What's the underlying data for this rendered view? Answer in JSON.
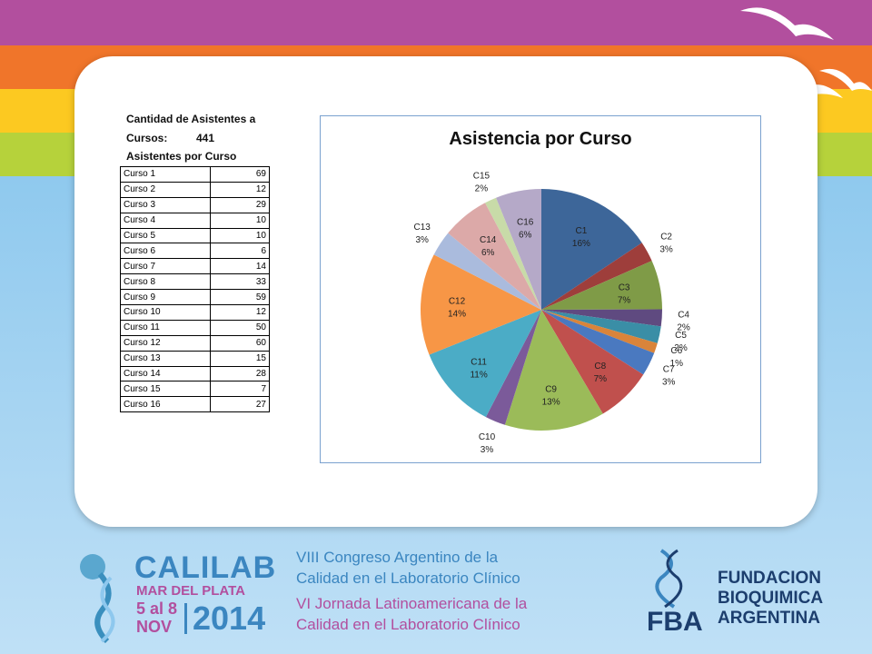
{
  "slide": {
    "heading_line1": "Cantidad de Asistentes a",
    "cursos_label": "Cursos:",
    "cursos_total": "441",
    "table_heading": "Asistentes por Curso"
  },
  "table": {
    "rows": [
      [
        "Curso 1",
        "69"
      ],
      [
        "Curso 2",
        "12"
      ],
      [
        "Curso 3",
        "29"
      ],
      [
        "Curso 4",
        "10"
      ],
      [
        "Curso 5",
        "10"
      ],
      [
        "Curso 6",
        "6"
      ],
      [
        "Curso 7",
        "14"
      ],
      [
        "Curso 8",
        "33"
      ],
      [
        "Curso 9",
        "59"
      ],
      [
        "Curso 10",
        "12"
      ],
      [
        "Curso 11",
        "50"
      ],
      [
        "Curso 12",
        "60"
      ],
      [
        "Curso 13",
        "15"
      ],
      [
        "Curso 14",
        "28"
      ],
      [
        "Curso 15",
        "7"
      ],
      [
        "Curso 16",
        "27"
      ]
    ]
  },
  "chart_data": {
    "type": "pie",
    "title": "Asistencia por Curso",
    "categories": [
      "C1",
      "C2",
      "C3",
      "C4",
      "C5",
      "C6",
      "C7",
      "C8",
      "C9",
      "C10",
      "C11",
      "C12",
      "C13",
      "C14",
      "C15",
      "C16"
    ],
    "values": [
      69,
      12,
      29,
      10,
      10,
      6,
      14,
      33,
      59,
      12,
      50,
      60,
      15,
      28,
      7,
      27
    ],
    "percent_labels": [
      "16%",
      "3%",
      "7%",
      "2%",
      "2%",
      "1%",
      "3%",
      "7%",
      "13%",
      "3%",
      "11%",
      "14%",
      "3%",
      "6%",
      "2%",
      "6%"
    ],
    "colors": [
      "#3d6699",
      "#9e3e3b",
      "#7f9b47",
      "#5f4a80",
      "#3a8ea6",
      "#d9843a",
      "#4a79c0",
      "#c0504d",
      "#9bbb59",
      "#7b5a9a",
      "#4bacc6",
      "#f79646",
      "#aabbdd",
      "#dca9a8",
      "#c8dba8",
      "#b5a9c8"
    ]
  },
  "footer": {
    "brand_line1": "CALILAB",
    "brand_line2": "MAR DEL PLATA",
    "dates": "5 al 8",
    "month": "NOV",
    "year": "2014",
    "event_line1": "VIII Congreso Argentino de la",
    "event_line2": "Calidad en el Laboratorio Clínico",
    "event_line3": "VI Jornada Latinoamericana de la",
    "event_line4": "Calidad en el Laboratorio Clínico",
    "fba_acronym": "FBA",
    "org_line1": "FUNDACION",
    "org_line2": "BIOQUIMICA",
    "org_line3": "ARGENTINA"
  }
}
